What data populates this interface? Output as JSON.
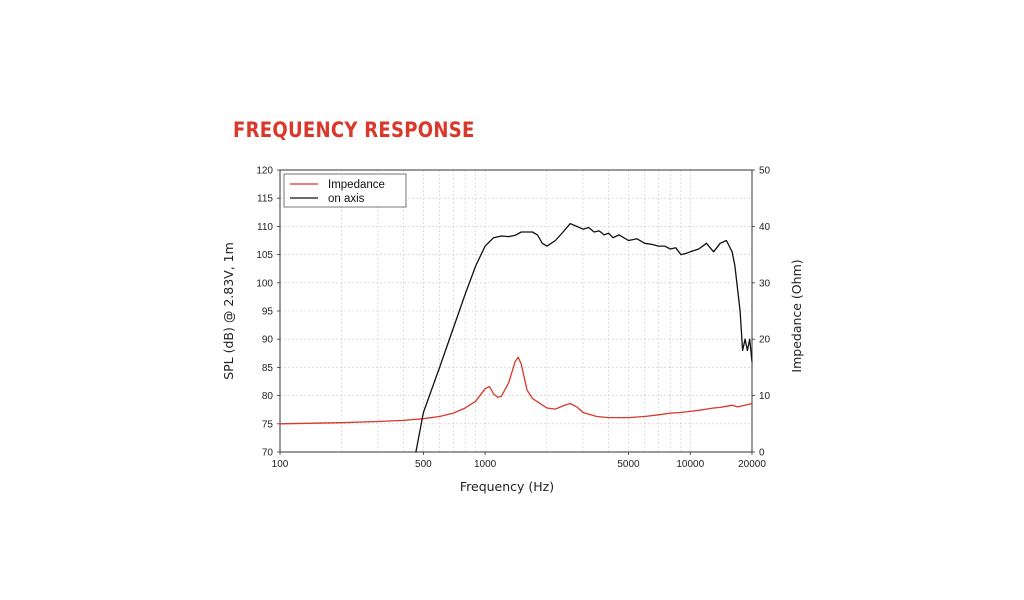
{
  "header": {
    "title": "FREQUENCY RESPONSE"
  },
  "chart_data": {
    "type": "line",
    "title": "FREQUENCY RESPONSE",
    "xlabel": "Frequency (Hz)",
    "ylabel": "SPL (dB) @ 2.83V, 1m",
    "y2label": "Impedance (Ohm)",
    "xscale": "log",
    "xlim": [
      100,
      20000
    ],
    "ylim": [
      70,
      120
    ],
    "y2lim": [
      0,
      50
    ],
    "grid": true,
    "legend_position": "top-left",
    "x_ticks": [
      100,
      500,
      1000,
      5000,
      10000,
      20000
    ],
    "x_tick_labels": [
      "100",
      "500",
      "1000",
      "5000",
      "10000",
      "20000"
    ],
    "y_ticks": [
      70,
      75,
      80,
      85,
      90,
      95,
      100,
      105,
      110,
      115,
      120
    ],
    "y2_ticks": [
      0,
      10,
      20,
      30,
      40,
      50
    ],
    "series": [
      {
        "name": "Impedance",
        "axis": "right",
        "color": "#d9382a",
        "x": [
          100,
          200,
          300,
          400,
          500,
          600,
          700,
          800,
          900,
          1000,
          1050,
          1100,
          1150,
          1200,
          1300,
          1400,
          1450,
          1500,
          1600,
          1700,
          1800,
          2000,
          2200,
          2400,
          2600,
          2800,
          3000,
          3500,
          4000,
          5000,
          6000,
          7000,
          8000,
          9000,
          10000,
          11000,
          12000,
          13000,
          14000,
          15000,
          16000,
          17000,
          18000,
          19000,
          20000
        ],
        "y": [
          5,
          5.2,
          5.4,
          5.6,
          5.9,
          6.3,
          6.9,
          7.8,
          9.0,
          11.2,
          11.6,
          10.3,
          9.7,
          9.9,
          12.2,
          16.0,
          16.8,
          15.6,
          11.0,
          9.5,
          8.9,
          7.8,
          7.6,
          8.2,
          8.6,
          8.0,
          7.0,
          6.3,
          6.1,
          6.1,
          6.3,
          6.6,
          6.9,
          7.0,
          7.2,
          7.4,
          7.6,
          7.8,
          7.9,
          8.1,
          8.3,
          8.0,
          8.2,
          8.4,
          8.6
        ]
      },
      {
        "name": "on axis",
        "axis": "left",
        "color": "#111111",
        "x": [
          460,
          500,
          600,
          700,
          800,
          900,
          1000,
          1100,
          1200,
          1300,
          1400,
          1500,
          1600,
          1700,
          1800,
          1900,
          2000,
          2100,
          2200,
          2400,
          2600,
          2800,
          3000,
          3200,
          3400,
          3600,
          3800,
          4000,
          4200,
          4500,
          5000,
          5500,
          6000,
          6500,
          7000,
          7500,
          8000,
          8500,
          9000,
          9500,
          10000,
          11000,
          12000,
          13000,
          14000,
          15000,
          16000,
          16500,
          17000,
          17500,
          18000,
          18500,
          19000,
          19500,
          20000
        ],
        "y": [
          70,
          77,
          85,
          92,
          98,
          103,
          106.5,
          108,
          108.3,
          108.2,
          108.4,
          109,
          109,
          109,
          108.5,
          107,
          106.5,
          107,
          107.5,
          109,
          110.5,
          110,
          109.5,
          109.8,
          109,
          109.2,
          108.5,
          108.8,
          108,
          108.5,
          107.5,
          107.8,
          107,
          106.8,
          106.5,
          106.5,
          106,
          106.2,
          105,
          105.2,
          105.5,
          106,
          107,
          105.5,
          107,
          107.5,
          105.5,
          103,
          99,
          95,
          88,
          90,
          88,
          90,
          86
        ]
      }
    ]
  }
}
